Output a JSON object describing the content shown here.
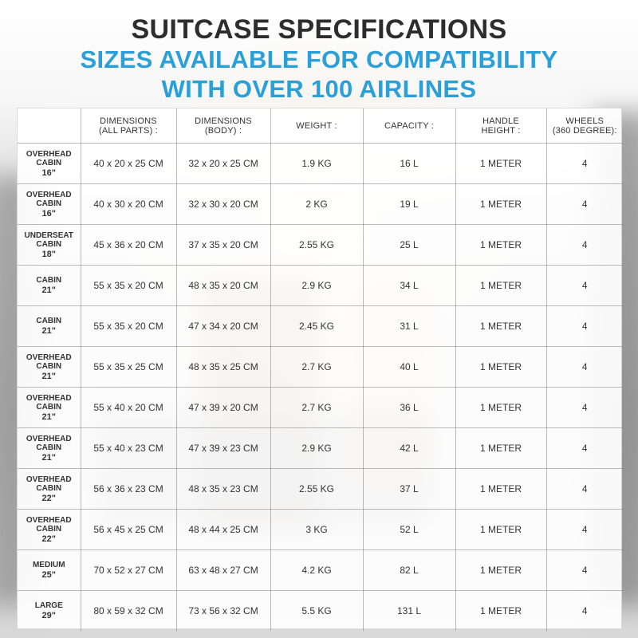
{
  "header": {
    "title": "SUITCASE SPECIFICATIONS",
    "subtitle_line_1": "SIZES AVAILABLE FOR COMPATIBILITY",
    "subtitle_line_2": "WITH OVER 100 AIRLINES"
  },
  "table": {
    "headers": [
      "",
      "DIMENSIONS\n(ALL PARTS) :",
      "DIMENSIONS\n(BODY) :",
      "WEIGHT :",
      "CAPACITY :",
      "HANDLE\nHEIGHT :",
      "WHEELS\n(360 DEGREE):"
    ],
    "rows": [
      {
        "label": "OVERHEAD\nCABIN",
        "size": "16\"",
        "all_parts": "40 x 20 x 25 CM",
        "body": "32 x 20 x 25 CM",
        "weight": "1.9 KG",
        "capacity": "16 L",
        "handle_height": "1 METER",
        "wheels": "4"
      },
      {
        "label": "OVERHEAD\nCABIN",
        "size": "16\"",
        "all_parts": "40 x 30 x 20 CM",
        "body": "32 x 30 x 20 CM",
        "weight": "2 KG",
        "capacity": "19 L",
        "handle_height": "1 METER",
        "wheels": "4"
      },
      {
        "label": "UNDERSEAT\nCABIN",
        "size": "18\"",
        "all_parts": "45 x 36 x 20 CM",
        "body": "37 x 35 x 20 CM",
        "weight": "2.55 KG",
        "capacity": "25 L",
        "handle_height": "1 METER",
        "wheels": "4"
      },
      {
        "label": "CABIN",
        "size": "21\"",
        "all_parts": "55 x 35 x 20 CM",
        "body": "48 x 35 x 20 CM",
        "weight": "2.9 KG",
        "capacity": "34 L",
        "handle_height": "1 METER",
        "wheels": "4"
      },
      {
        "label": "CABIN",
        "size": "21\"",
        "all_parts": "55 x 35 x 20 CM",
        "body": "47 x 34 x 20 CM",
        "weight": "2.45 KG",
        "capacity": "31 L",
        "handle_height": "1 METER",
        "wheels": "4"
      },
      {
        "label": "OVERHEAD\nCABIN",
        "size": "21\"",
        "all_parts": "55 x 35 x 25 CM",
        "body": "48 x 35 x 25 CM",
        "weight": "2.7 KG",
        "capacity": "40 L",
        "handle_height": "1 METER",
        "wheels": "4"
      },
      {
        "label": "OVERHEAD\nCABIN",
        "size": "21\"",
        "all_parts": "55 x 40 x 20 CM",
        "body": "47 x 39 x 20 CM",
        "weight": "2.7 KG",
        "capacity": "36 L",
        "handle_height": "1 METER",
        "wheels": "4"
      },
      {
        "label": "OVERHEAD\nCABIN",
        "size": "21\"",
        "all_parts": "55 x 40 x 23 CM",
        "body": "47 x 39 x 23 CM",
        "weight": "2.9 KG",
        "capacity": "42 L",
        "handle_height": "1 METER",
        "wheels": "4"
      },
      {
        "label": "OVERHEAD\nCABIN",
        "size": "22\"",
        "all_parts": "56 x 36 x 23 CM",
        "body": "48 x 35 x 23 CM",
        "weight": "2.55 KG",
        "capacity": "37 L",
        "handle_height": "1 METER",
        "wheels": "4"
      },
      {
        "label": "OVERHEAD\nCABIN",
        "size": "22\"",
        "all_parts": "56 x 45 x 25 CM",
        "body": "48 x 44 x 25 CM",
        "weight": "3 KG",
        "capacity": "52 L",
        "handle_height": "1 METER",
        "wheels": "4"
      },
      {
        "label": "MEDIUM",
        "size": "25\"",
        "all_parts": "70 x 52 x 27 CM",
        "body": "63 x 48 x 27 CM",
        "weight": "4.2 KG",
        "capacity": "82 L",
        "handle_height": "1 METER",
        "wheels": "4"
      },
      {
        "label": "LARGE",
        "size": "29\"",
        "all_parts": "80 x 59 x 32 CM",
        "body": "73 x 56 x 32 CM",
        "weight": "5.5 KG",
        "capacity": "131 L",
        "handle_height": "1 METER",
        "wheels": "4"
      }
    ]
  }
}
